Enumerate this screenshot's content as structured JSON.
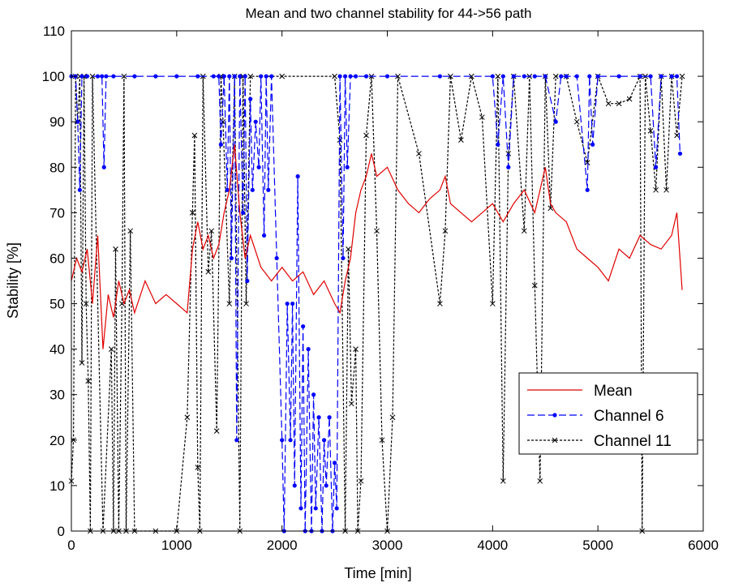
{
  "chart_data": {
    "type": "line",
    "title": "Mean and two channel stability for 44->56 path",
    "xlabel": "Time [min]",
    "ylabel": "Stability [%]",
    "xlim": [
      0,
      6000
    ],
    "ylim": [
      0,
      110
    ],
    "xticks": [
      0,
      1000,
      2000,
      3000,
      4000,
      5000,
      6000
    ],
    "yticks": [
      0,
      10,
      20,
      30,
      40,
      50,
      60,
      70,
      80,
      90,
      100,
      110
    ],
    "grid": false,
    "legend_position": "lower-right",
    "series": [
      {
        "name": "Mean",
        "color": "#e00000",
        "style": "solid",
        "marker": "none",
        "x": [
          0,
          50,
          100,
          150,
          200,
          250,
          300,
          350,
          400,
          450,
          500,
          550,
          600,
          700,
          800,
          900,
          1000,
          1100,
          1150,
          1200,
          1250,
          1300,
          1350,
          1400,
          1450,
          1500,
          1550,
          1600,
          1650,
          1700,
          1800,
          1900,
          2000,
          2100,
          2200,
          2300,
          2400,
          2500,
          2550,
          2600,
          2650,
          2700,
          2750,
          2800,
          2850,
          2900,
          3000,
          3100,
          3200,
          3300,
          3400,
          3500,
          3550,
          3600,
          3700,
          3800,
          3900,
          4000,
          4100,
          4200,
          4300,
          4400,
          4500,
          4550,
          4600,
          4700,
          4800,
          4900,
          5000,
          5100,
          5200,
          5300,
          5400,
          5500,
          5600,
          5700,
          5750,
          5800
        ],
        "y": [
          55,
          60,
          57,
          62,
          50,
          65,
          40,
          52,
          47,
          55,
          50,
          53,
          48,
          55,
          50,
          52,
          50,
          48,
          62,
          68,
          62,
          65,
          60,
          63,
          70,
          75,
          85,
          70,
          60,
          65,
          58,
          55,
          58,
          55,
          57,
          52,
          55,
          50,
          48,
          55,
          60,
          70,
          75,
          78,
          83,
          78,
          80,
          75,
          72,
          70,
          73,
          75,
          78,
          72,
          70,
          68,
          70,
          72,
          68,
          72,
          75,
          70,
          80,
          72,
          70,
          68,
          62,
          60,
          58,
          55,
          62,
          60,
          65,
          63,
          62,
          65,
          70,
          53
        ]
      },
      {
        "name": "Channel 6",
        "color": "#0000ff",
        "style": "dashed",
        "marker": "dot",
        "x": [
          0,
          40,
          60,
          80,
          100,
          150,
          250,
          290,
          310,
          330,
          400,
          600,
          800,
          1000,
          1200,
          1350,
          1400,
          1420,
          1450,
          1480,
          1500,
          1520,
          1550,
          1570,
          1600,
          1630,
          1650,
          1670,
          1700,
          1720,
          1750,
          1780,
          1800,
          1830,
          1850,
          1870,
          1900,
          1950,
          2000,
          2020,
          2050,
          2080,
          2100,
          2120,
          2150,
          2180,
          2200,
          2220,
          2250,
          2280,
          2300,
          2320,
          2350,
          2380,
          2400,
          2420,
          2450,
          2480,
          2500,
          2520,
          2550,
          2580,
          2600,
          2620,
          2650,
          2700,
          2800,
          3000,
          3500,
          4000,
          4050,
          4100,
          4150,
          4200,
          4300,
          4400,
          4500,
          4600,
          4650,
          4700,
          4800,
          4900,
          4920,
          4950,
          5000,
          5200,
          5400,
          5500,
          5550,
          5600,
          5700,
          5750,
          5780
        ],
        "y": [
          100,
          100,
          90,
          75,
          100,
          100,
          100,
          100,
          80,
          100,
          100,
          100,
          100,
          100,
          100,
          100,
          100,
          85,
          100,
          75,
          100,
          60,
          100,
          20,
          100,
          70,
          100,
          55,
          95,
          75,
          90,
          80,
          100,
          65,
          100,
          75,
          100,
          60,
          20,
          0,
          50,
          20,
          50,
          10,
          78,
          5,
          45,
          0,
          40,
          0,
          30,
          5,
          25,
          0,
          20,
          10,
          25,
          0,
          15,
          5,
          100,
          60,
          100,
          80,
          100,
          100,
          100,
          100,
          100,
          100,
          85,
          100,
          80,
          100,
          100,
          100,
          100,
          90,
          100,
          100,
          100,
          75,
          100,
          85,
          100,
          100,
          100,
          100,
          80,
          100,
          100,
          100,
          83
        ]
      },
      {
        "name": "Channel 11",
        "color": "#000000",
        "style": "dotted",
        "marker": "x",
        "x": [
          0,
          20,
          40,
          60,
          80,
          100,
          120,
          140,
          160,
          180,
          200,
          300,
          380,
          400,
          420,
          450,
          480,
          500,
          520,
          560,
          600,
          800,
          1000,
          1100,
          1150,
          1170,
          1200,
          1220,
          1250,
          1300,
          1330,
          1380,
          1420,
          1440,
          1500,
          1550,
          1600,
          1630,
          1660,
          1700,
          2000,
          2500,
          2550,
          2600,
          2630,
          2660,
          2700,
          2720,
          2750,
          2800,
          2850,
          2900,
          2950,
          3000,
          3050,
          3100,
          3300,
          3500,
          3550,
          3600,
          3700,
          3800,
          3900,
          4000,
          4050,
          4100,
          4150,
          4200,
          4300,
          4350,
          4400,
          4450,
          4500,
          4550,
          4600,
          4700,
          4800,
          4900,
          5000,
          5100,
          5200,
          5300,
          5400,
          5420,
          5450,
          5500,
          5550,
          5600,
          5650,
          5700,
          5750,
          5800
        ],
        "y": [
          11,
          20,
          100,
          90,
          100,
          37,
          100,
          50,
          33,
          0,
          100,
          0,
          40,
          0,
          62,
          0,
          50,
          100,
          0,
          66,
          0,
          0,
          0,
          25,
          70,
          87,
          14,
          0,
          100,
          57,
          66,
          22,
          100,
          90,
          50,
          100,
          0,
          100,
          50,
          100,
          100,
          100,
          86,
          0,
          62,
          28,
          40,
          0,
          11,
          87,
          100,
          66,
          20,
          0,
          25,
          100,
          83,
          50,
          66,
          100,
          86,
          100,
          91,
          50,
          100,
          11,
          83,
          100,
          66,
          100,
          54,
          11,
          100,
          71,
          100,
          100,
          90,
          81,
          100,
          94,
          94,
          95,
          100,
          0,
          100,
          88,
          75,
          100,
          75,
          100,
          87,
          100
        ]
      }
    ]
  }
}
